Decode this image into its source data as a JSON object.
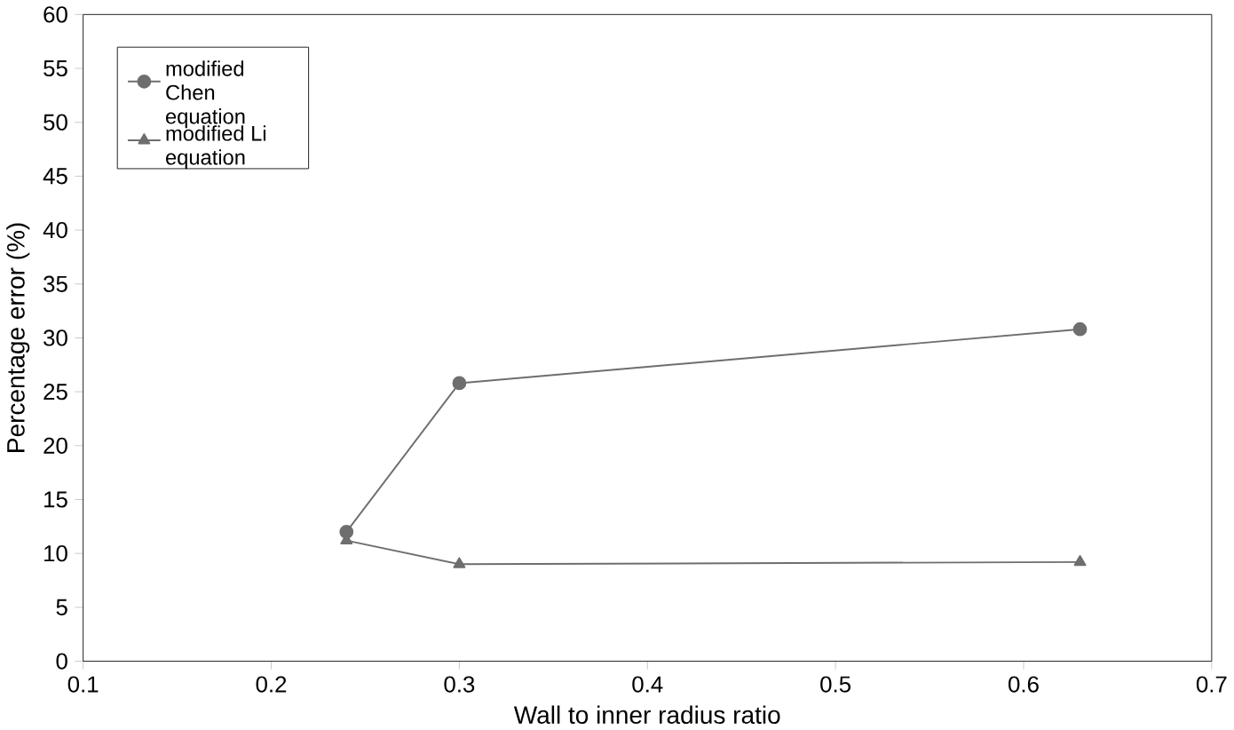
{
  "chart_data": {
    "type": "line",
    "xlabel": "Wall to inner radius ratio",
    "ylabel": "Percentage error (%)",
    "xlim": [
      0.1,
      0.7
    ],
    "xticks": [
      0.1,
      0.2,
      0.3,
      0.4,
      0.5,
      0.6,
      0.7
    ],
    "ylim": [
      0,
      60
    ],
    "yticks": [
      0,
      5,
      10,
      15,
      20,
      25,
      30,
      35,
      40,
      45,
      50,
      55,
      60
    ],
    "x": [
      0.24,
      0.3,
      0.63
    ],
    "series": [
      {
        "name": "modified Chen equation",
        "color": "#6e6e6e",
        "marker": "circle",
        "values": [
          12,
          25.8,
          30.8
        ]
      },
      {
        "name": "modified Li equation",
        "color": "#6e6e6e",
        "marker": "triangle",
        "values": [
          11.2,
          9,
          9.2
        ]
      }
    ],
    "legend": "top left",
    "line_style": "solid",
    "grid": false
  }
}
